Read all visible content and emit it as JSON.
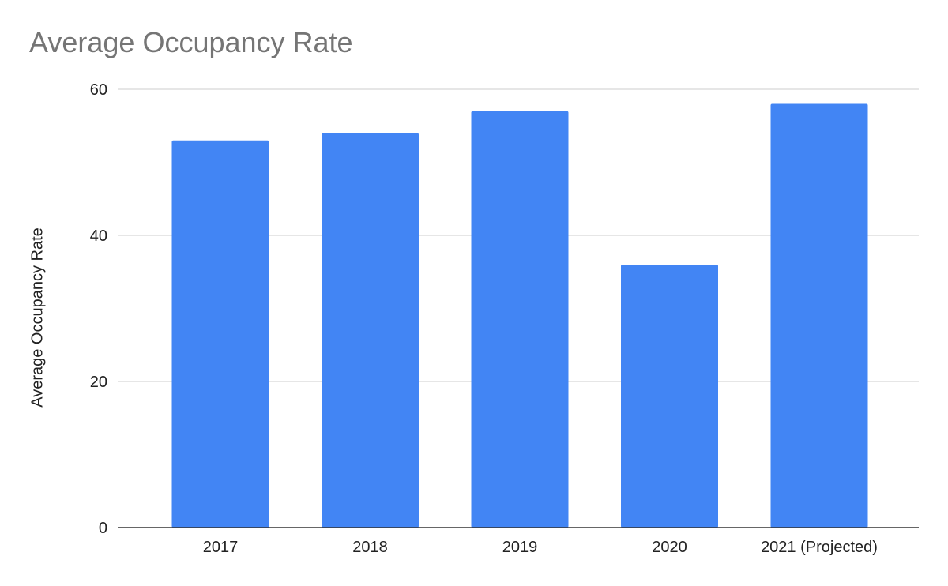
{
  "chart_data": {
    "type": "bar",
    "title": "Average Occupancy Rate",
    "xlabel": "",
    "ylabel": "Average Occupancy Rate",
    "categories": [
      "2017",
      "2018",
      "2019",
      "2020",
      "2021 (Projected)"
    ],
    "values": [
      53,
      54,
      57,
      36,
      58
    ],
    "ylim": [
      0,
      60
    ],
    "yticks": [
      0,
      20,
      40,
      60
    ],
    "grid": true,
    "legend": "none",
    "colors": {
      "bar": "#4285f4",
      "grid": "#cccccc",
      "axis": "#333333",
      "title": "#757575"
    }
  }
}
